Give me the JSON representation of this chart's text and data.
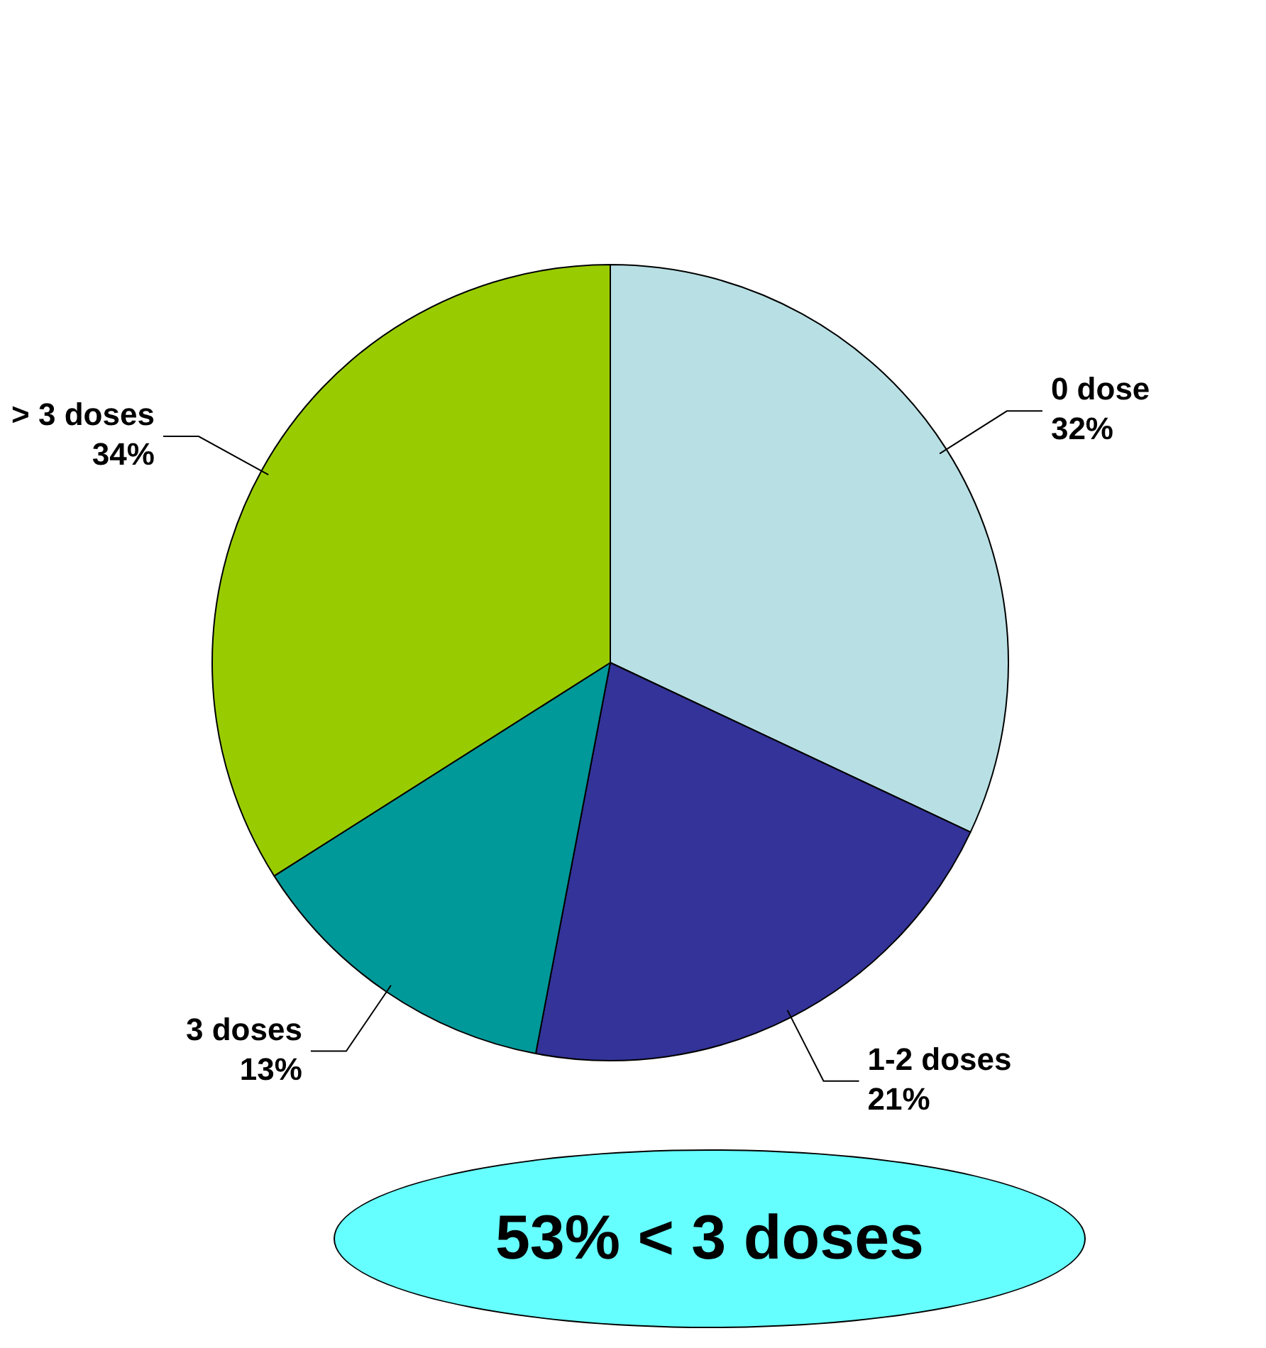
{
  "chart_data": {
    "type": "pie",
    "categories": [
      "0 dose",
      "1-2 doses",
      "3 doses",
      "> 3 doses"
    ],
    "values": [
      32,
      21,
      13,
      34
    ],
    "value_labels": [
      "32%",
      "21%",
      "13%",
      "34%"
    ],
    "colors": [
      "#b8e0e4",
      "#333399",
      "#009999",
      "#99cc00"
    ],
    "annotations": [
      "53% < 3 doses"
    ],
    "legend": false
  }
}
